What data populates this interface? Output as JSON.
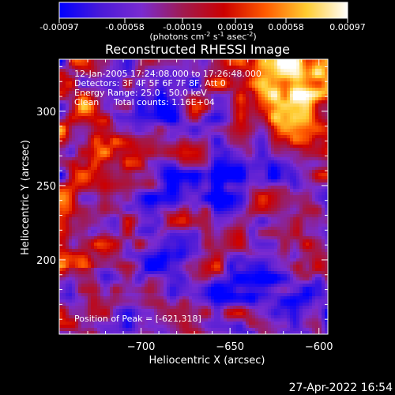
{
  "colorbar": {
    "tick_labels": [
      "-0.00097",
      "-0.00058",
      "-0.00019",
      "0.00019",
      "0.00058",
      "0.00097"
    ],
    "range": [
      -0.00097,
      0.00097
    ],
    "units_main": "(photons cm",
    "units_exp1": "-2",
    "units_mid": " s",
    "units_exp2": "-1",
    "units_end": " asec",
    "units_exp3": "-2",
    "units_close": ")",
    "colors": [
      "#0000ff",
      "#4a1ad8",
      "#7a2bd0",
      "#a01a50",
      "#cc0000",
      "#ff5a00",
      "#ffcc30",
      "#ffffff"
    ]
  },
  "chart_data": {
    "type": "heatmap",
    "title": "Reconstructed RHESSI Image",
    "xlabel": "Heliocentric X (arcsec)",
    "ylabel": "Heliocentric Y (arcsec)",
    "xlim": [
      -746,
      -595
    ],
    "ylim": [
      150,
      335
    ],
    "x_ticks": [
      -700,
      -650,
      -600
    ],
    "x_tick_labels": [
      "−700",
      "−650",
      "−600"
    ],
    "y_ticks": [
      200,
      250,
      300
    ],
    "y_tick_labels": [
      "200",
      "250",
      "300"
    ],
    "peak": [
      -621,
      318
    ],
    "annotations": {
      "line1": "12-Jan-2005 17:24:08.000 to 17:26:48.000",
      "line2": "Detectors: 3F 4F 5F 6F 7F 8F, Att 0",
      "line3": "Energy Range: 25.0 - 50.0 keV",
      "line4_a": "Clean",
      "line4_b": "Total counts: 1.16E+04",
      "peak_text": "Position of Peak = [-621,318]"
    }
  },
  "footer": {
    "timestamp": "27-Apr-2022 16:54"
  }
}
